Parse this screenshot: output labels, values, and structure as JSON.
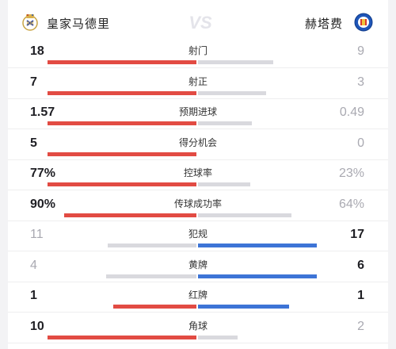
{
  "header": {
    "home_team": "皇家马德里",
    "away_team": "赫塔费",
    "vs_label": "VS"
  },
  "colors": {
    "home": "#e24b43",
    "away": "#3d74d6",
    "neutral": "#d9d9de"
  },
  "stats": [
    {
      "label": "射门",
      "home": "18",
      "away": "9",
      "home_value": 18,
      "away_value": 9,
      "leader": "home"
    },
    {
      "label": "射正",
      "home": "7",
      "away": "3",
      "home_value": 7,
      "away_value": 3,
      "leader": "home"
    },
    {
      "label": "预期进球",
      "home": "1.57",
      "away": "0.49",
      "home_value": 1.57,
      "away_value": 0.49,
      "leader": "home"
    },
    {
      "label": "得分机会",
      "home": "5",
      "away": "0",
      "home_value": 5,
      "away_value": 0,
      "leader": "home"
    },
    {
      "label": "控球率",
      "home": "77%",
      "away": "23%",
      "home_value": 77,
      "away_value": 23,
      "leader": "home"
    },
    {
      "label": "传球成功率",
      "home": "90%",
      "away": "64%",
      "home_value": 90,
      "away_value": 64,
      "leader": "home"
    },
    {
      "label": "犯规",
      "home": "11",
      "away": "17",
      "home_value": 11,
      "away_value": 17,
      "leader": "away"
    },
    {
      "label": "黄牌",
      "home": "4",
      "away": "6",
      "home_value": 4,
      "away_value": 6,
      "leader": "away"
    },
    {
      "label": "红牌",
      "home": "1",
      "away": "1",
      "home_value": 1,
      "away_value": 1,
      "leader": "both"
    },
    {
      "label": "角球",
      "home": "10",
      "away": "2",
      "home_value": 10,
      "away_value": 2,
      "leader": "home"
    }
  ]
}
